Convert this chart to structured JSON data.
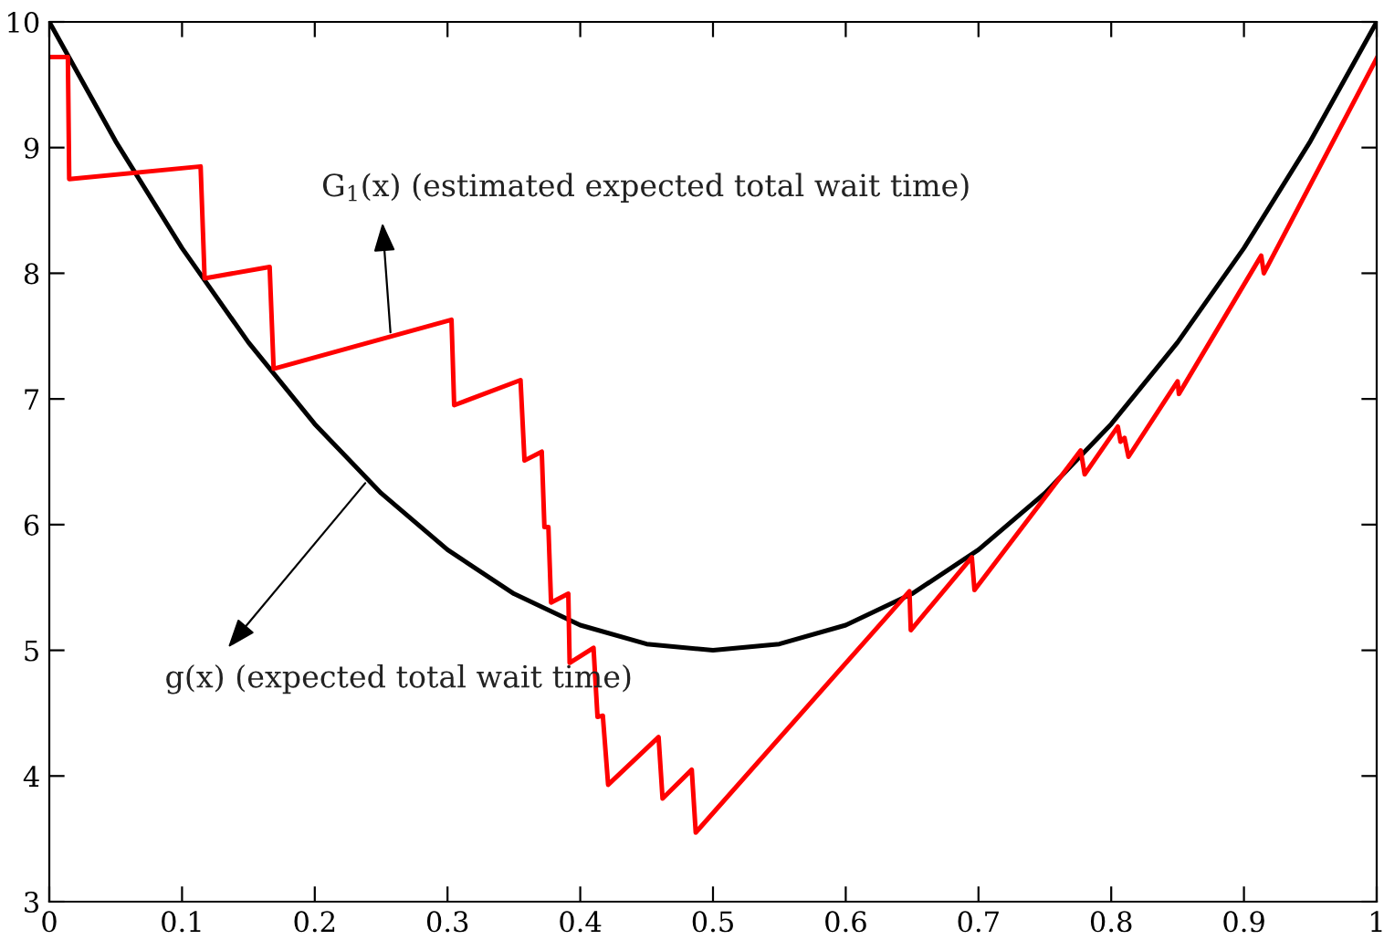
{
  "chart_data": {
    "type": "line",
    "xlim": [
      0,
      1
    ],
    "ylim": [
      3,
      10
    ],
    "xticks": [
      0,
      0.1,
      0.2,
      0.3,
      0.4,
      0.5,
      0.6,
      0.7,
      0.8,
      0.9,
      1
    ],
    "yticks": [
      3,
      4,
      5,
      6,
      7,
      8,
      9,
      10
    ],
    "grid": false,
    "legend": false,
    "marker": "none",
    "line_style": "solid",
    "series": [
      {
        "color": "#000000",
        "x": [
          0,
          0.05,
          0.1,
          0.15,
          0.2,
          0.25,
          0.3,
          0.35,
          0.4,
          0.45,
          0.5,
          0.55,
          0.6,
          0.65,
          0.7,
          0.75,
          0.8,
          0.85,
          0.9,
          0.95,
          1
        ],
        "values": [
          10,
          9.05,
          8.2,
          7.45,
          6.8,
          6.25,
          5.8,
          5.45,
          5.2,
          5.05,
          5,
          5.05,
          5.2,
          5.45,
          5.8,
          6.25,
          6.8,
          7.45,
          8.2,
          9.05,
          10
        ]
      },
      {
        "color": "#ff0000",
        "x": [
          0,
          0.014,
          0.015,
          0.114,
          0.117,
          0.166,
          0.169,
          0.303,
          0.305,
          0.355,
          0.358,
          0.371,
          0.373,
          0.376,
          0.378,
          0.391,
          0.392,
          0.41,
          0.413,
          0.417,
          0.421,
          0.459,
          0.462,
          0.484,
          0.487,
          0.648,
          0.649,
          0.695,
          0.697,
          0.777,
          0.78,
          0.805,
          0.807,
          0.81,
          0.813,
          0.85,
          0.851,
          0.913,
          0.915,
          1
        ],
        "values": [
          9.72,
          9.72,
          8.75,
          8.85,
          7.96,
          8.05,
          7.24,
          7.63,
          6.95,
          7.15,
          6.51,
          6.58,
          5.98,
          5.98,
          5.38,
          5.45,
          4.9,
          5.02,
          4.47,
          4.48,
          3.93,
          4.31,
          3.82,
          4.05,
          3.55,
          5.47,
          5.16,
          5.74,
          5.48,
          6.59,
          6.4,
          6.78,
          6.66,
          6.69,
          6.54,
          7.14,
          7.04,
          8.14,
          8,
          9.71
        ]
      }
    ],
    "annotations": [
      {
        "text": "G$_{1}$(x) (estimated expected total wait time)",
        "x": 0.257,
        "y": 7.53
      },
      {
        "text": "g(x) (expected total wait time)",
        "x": 0.238,
        "y": 6.33
      }
    ]
  }
}
